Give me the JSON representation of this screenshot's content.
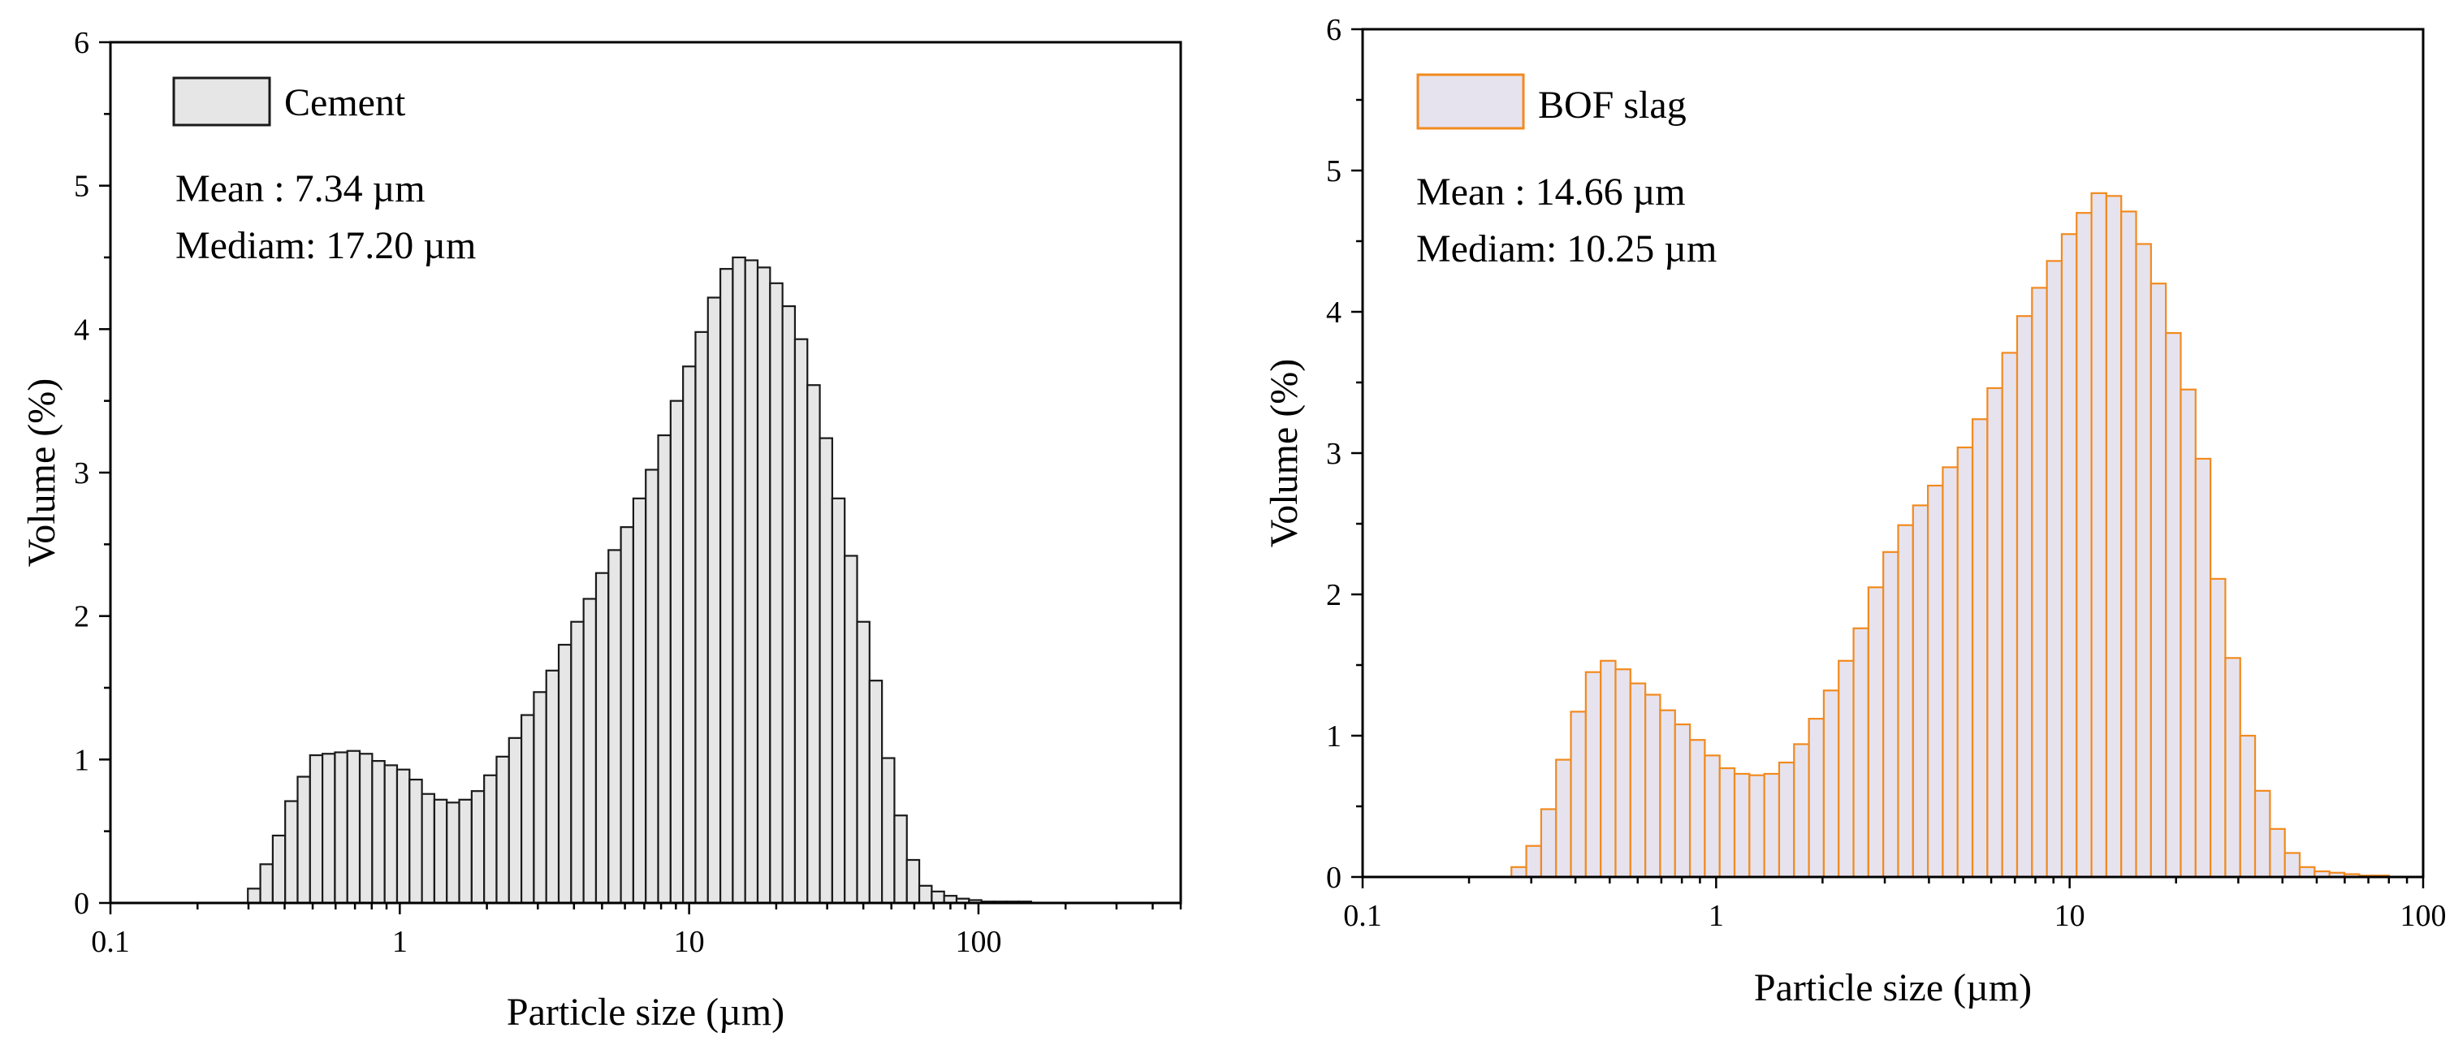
{
  "chart_data": [
    {
      "type": "bar",
      "x_scale": "log",
      "xlabel": "Particle size (µm)",
      "ylabel": "Volume (%)",
      "xlim": [
        0.1,
        500
      ],
      "ylim": [
        0,
        6
      ],
      "x_ticks": [
        0.1,
        1,
        10,
        100
      ],
      "x_tick_labels": [
        "0.1",
        "1",
        "10",
        "100"
      ],
      "y_ticks": [
        0,
        1,
        2,
        3,
        4,
        5,
        6
      ],
      "y_tick_labels": [
        "0",
        "1",
        "2",
        "3",
        "4",
        "5",
        "6"
      ],
      "grid": false,
      "legend_position": "top-left",
      "fill_color": "#e6e6e6",
      "edge_color": "#1a1a1a",
      "series": [
        {
          "name": "Cement",
          "bin_edges": [
            0.2985,
            0.3296,
            0.3639,
            0.4017,
            0.4435,
            0.4896,
            0.5405,
            0.5967,
            0.6588,
            0.7273,
            0.8029,
            0.8865,
            0.9787,
            1.0805,
            1.1929,
            1.3169,
            1.4539,
            1.6051,
            1.7721,
            1.9564,
            2.1599,
            2.3845,
            2.6325,
            2.9063,
            3.2086,
            3.5423,
            3.9107,
            4.3174,
            4.7665,
            5.2622,
            5.8096,
            6.4138,
            7.0808,
            7.8173,
            8.6303,
            9.5279,
            10.5188,
            11.6128,
            12.8206,
            14.154,
            15.6261,
            17.2513,
            19.0455,
            21.0264,
            23.2132,
            25.6275,
            28.2929,
            31.2355,
            34.4842,
            38.0707,
            42.0302,
            46.4016,
            51.2276,
            56.5556,
            62.4377,
            68.9315,
            76.1007,
            84.0155,
            92.7535,
            102.4004,
            113.0507,
            124.8086,
            137.7893,
            152.12
          ],
          "values": [
            0.1,
            0.27,
            0.47,
            0.71,
            0.88,
            1.03,
            1.04,
            1.05,
            1.06,
            1.04,
            0.99,
            0.96,
            0.93,
            0.86,
            0.76,
            0.72,
            0.7,
            0.72,
            0.78,
            0.89,
            1.02,
            1.15,
            1.31,
            1.47,
            1.62,
            1.8,
            1.96,
            2.12,
            2.3,
            2.46,
            2.62,
            2.82,
            3.02,
            3.26,
            3.5,
            3.74,
            3.98,
            4.22,
            4.42,
            4.5,
            4.48,
            4.43,
            4.32,
            4.16,
            3.93,
            3.61,
            3.24,
            2.82,
            2.42,
            1.96,
            1.55,
            1.01,
            0.61,
            0.3,
            0.12,
            0.08,
            0.05,
            0.03,
            0.02,
            0.01,
            0.01,
            0.01,
            0.01
          ]
        }
      ],
      "annotations": [
        "Mean : 7.34 µm",
        "Mediam: 17.20 µm"
      ]
    },
    {
      "type": "bar",
      "x_scale": "log",
      "xlabel": "Particle size (µm)",
      "ylabel": "Volume (%)",
      "xlim": [
        0.1,
        100
      ],
      "ylim": [
        0,
        6
      ],
      "x_ticks": [
        0.1,
        1,
        10,
        100
      ],
      "x_tick_labels": [
        "0.1",
        "1",
        "10",
        "100"
      ],
      "y_ticks": [
        0,
        1,
        2,
        3,
        4,
        5,
        6
      ],
      "y_tick_labels": [
        "0",
        "1",
        "2",
        "3",
        "4",
        "5",
        "6"
      ],
      "grid": false,
      "legend_position": "top-left",
      "fill_color": "#e6e3ef",
      "edge_color": "#f28a1e",
      "series": [
        {
          "name": "BOF slag",
          "bin_edges": [
            0.2636,
            0.2904,
            0.32,
            0.3525,
            0.3884,
            0.4279,
            0.4715,
            0.5194,
            0.5723,
            0.6305,
            0.6946,
            0.7653,
            0.8432,
            0.9289,
            1.0234,
            1.1275,
            1.2422,
            1.3686,
            1.5078,
            1.6611,
            1.8301,
            2.0163,
            2.2214,
            2.4474,
            2.6963,
            2.9706,
            3.2728,
            3.6057,
            3.9724,
            4.3765,
            4.8217,
            5.3122,
            5.8526,
            6.4479,
            7.1038,
            7.8264,
            8.6225,
            9.4996,
            10.4659,
            11.5305,
            12.7034,
            13.9956,
            15.4193,
            16.9877,
            18.7157,
            20.6195,
            22.717,
            25.0278,
            27.5736,
            30.3784,
            33.4686,
            36.8731,
            40.6238,
            44.7562,
            49.3088,
            54.3245,
            59.8505,
            65.9386,
            72.6459,
            80.0355
          ],
          "values": [
            0.07,
            0.22,
            0.48,
            0.83,
            1.17,
            1.45,
            1.53,
            1.47,
            1.37,
            1.29,
            1.18,
            1.08,
            0.97,
            0.86,
            0.77,
            0.73,
            0.72,
            0.73,
            0.81,
            0.94,
            1.12,
            1.32,
            1.53,
            1.76,
            2.05,
            2.3,
            2.49,
            2.63,
            2.77,
            2.9,
            3.04,
            3.24,
            3.46,
            3.71,
            3.97,
            4.17,
            4.36,
            4.55,
            4.7,
            4.84,
            4.82,
            4.71,
            4.48,
            4.2,
            3.85,
            3.45,
            2.96,
            2.11,
            1.55,
            1.0,
            0.61,
            0.34,
            0.17,
            0.07,
            0.04,
            0.03,
            0.02,
            0.01,
            0.01
          ]
        }
      ],
      "annotations": [
        "Mean : 14.66 µm",
        "Mediam: 10.25 µm"
      ]
    }
  ]
}
